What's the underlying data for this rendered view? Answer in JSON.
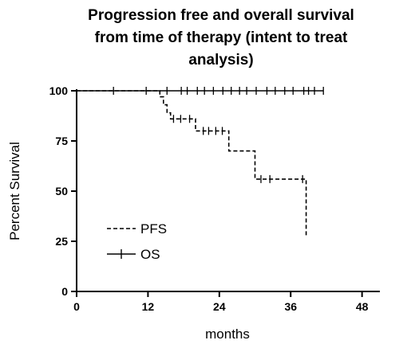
{
  "chart_data": {
    "type": "line",
    "title_lines": [
      "Progression free and overall survival",
      "from time of therapy (intent to treat",
      "analysis)"
    ],
    "xlabel": "months",
    "ylabel": "Percent Survival",
    "xlim": [
      0,
      51
    ],
    "ylim": [
      0,
      100
    ],
    "x_ticks": [
      "0",
      "12",
      "24",
      "36",
      "48"
    ],
    "x_tick_values": [
      0,
      12,
      24,
      36,
      48
    ],
    "y_ticks": [
      "0",
      "25",
      "50",
      "75",
      "100"
    ],
    "y_tick_values": [
      0,
      25,
      50,
      75,
      100
    ],
    "legend_position": "lower-left",
    "series": [
      {
        "name": "PFS",
        "line_style": "dashed",
        "step_points": [
          [
            0,
            100
          ],
          [
            14,
            100
          ],
          [
            14,
            97
          ],
          [
            14.6,
            97
          ],
          [
            14.6,
            93
          ],
          [
            15.2,
            93
          ],
          [
            15.2,
            89
          ],
          [
            15.8,
            89
          ],
          [
            15.8,
            86
          ],
          [
            20,
            86
          ],
          [
            20,
            80
          ],
          [
            25.6,
            80
          ],
          [
            25.6,
            70
          ],
          [
            30,
            70
          ],
          [
            30,
            56
          ],
          [
            38.6,
            56
          ],
          [
            38.6,
            28
          ],
          [
            38.8,
            28
          ]
        ],
        "censor_marks": [
          16.3,
          17.5,
          19.0,
          21.3,
          22.2,
          23.4,
          24.5,
          31.0,
          32.5,
          38.0
        ]
      },
      {
        "name": "OS",
        "line_style": "solid",
        "step_points": [
          [
            0,
            100
          ],
          [
            41.5,
            100
          ]
        ],
        "censor_marks": [
          6.2,
          11.7,
          15.2,
          17.6,
          18.6,
          20.3,
          21.5,
          23.0,
          24.6,
          26.0,
          27.4,
          28.6,
          30.2,
          32.0,
          33.4,
          35.0,
          36.4,
          38.2,
          39.0,
          40.0,
          41.5
        ]
      }
    ]
  }
}
